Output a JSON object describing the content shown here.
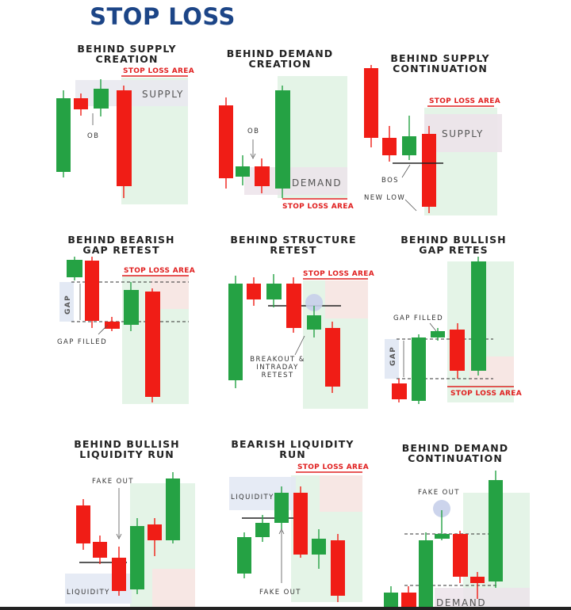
{
  "title": "STOP LOSS",
  "colors": {
    "title": "#1c4587",
    "bull": "#25a244",
    "bear": "#f01d16",
    "stop_loss": "#e02020"
  },
  "panels": [
    {
      "title_lines": [
        "BEHIND SUPPLY",
        "CREATION"
      ],
      "labels": {
        "stop": "STOP LOSS AREA",
        "zone": "SUPPLY",
        "ob": "OB"
      }
    },
    {
      "title_lines": [
        "BEHIND DEMAND",
        "CREATION"
      ],
      "labels": {
        "stop": "STOP LOSS AREA",
        "zone": "DEMAND",
        "ob": "OB"
      }
    },
    {
      "title_lines": [
        "BEHIND SUPPLY",
        "CONTINUATION"
      ],
      "labels": {
        "stop": "STOP LOSS AREA",
        "zone": "SUPPLY",
        "bos": "BOS",
        "new_low": "NEW LOW"
      }
    },
    {
      "title_lines": [
        "BEHIND BEARISH",
        "GAP RETEST"
      ],
      "labels": {
        "stop": "STOP LOSS AREA",
        "gap": "GAP",
        "gap_filled": "GAP FILLED"
      }
    },
    {
      "title_lines": [
        "BEHIND STRUCTURE",
        "RETEST"
      ],
      "labels": {
        "stop": "STOP LOSS AREA",
        "retest": [
          "BREAKOUT &",
          "INTRADAY",
          "RETEST"
        ]
      }
    },
    {
      "title_lines": [
        "BEHIND BULLISH",
        "GAP RETES"
      ],
      "labels": {
        "stop": "STOP LOSS AREA",
        "gap": "GAP",
        "gap_filled": "GAP FILLED"
      }
    },
    {
      "title_lines": [
        "BEHIND BULLISH",
        "LIQUIDITY RUN"
      ],
      "labels": {
        "fake_out": "FAKE OUT",
        "liquidity": "LIQUIDITY"
      }
    },
    {
      "title_lines": [
        "BEARISH LIQUIDITY",
        "RUN"
      ],
      "labels": {
        "stop": "STOP LOSS AREA",
        "liquidity": "LIQUIDITY",
        "fake_out": "FAKE OUT"
      }
    },
    {
      "title_lines": [
        "BEHIND DEMAND",
        "CONTINUATION"
      ],
      "labels": {
        "fake_out": "FAKE OUT",
        "zone": "DEMAND"
      }
    }
  ]
}
